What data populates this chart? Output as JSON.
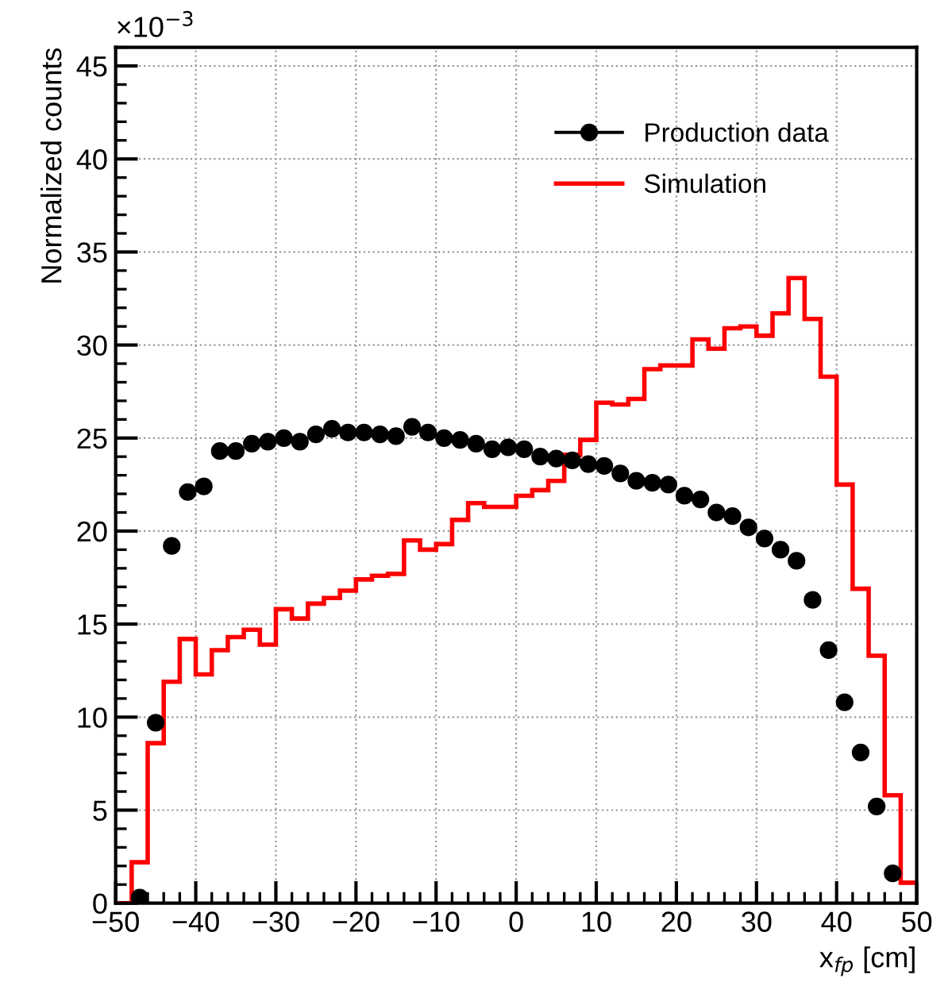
{
  "chart_data": {
    "type": "scatter",
    "xlabel": "x$_{fp}$ [cm]",
    "ylabel": "Normalized counts",
    "annotations": [
      "×10$^{−3}$"
    ],
    "xlim": [
      -50,
      50
    ],
    "xticks": [
      -50,
      -40,
      -30,
      -20,
      -10,
      0,
      10,
      20,
      30,
      40,
      50
    ],
    "ylim": [
      0,
      46
    ],
    "yticks": [
      0,
      5,
      10,
      15,
      20,
      25,
      30,
      35,
      40,
      45
    ],
    "grid": true,
    "legend": "top right",
    "marker": "circle",
    "series": [
      {
        "name": "Production data",
        "color": "#000000",
        "x": [
          -47,
          -45,
          -43,
          -41,
          -39,
          -37,
          -35,
          -33,
          -31,
          -29,
          -27,
          -25,
          -23,
          -21,
          -19,
          -17,
          -15,
          -13,
          -11,
          -9,
          -7,
          -5,
          -3,
          -1,
          1,
          3,
          5,
          7,
          9,
          11,
          13,
          15,
          17,
          19,
          21,
          23,
          25,
          27,
          29,
          31,
          33,
          35,
          37,
          39,
          41,
          43,
          45,
          47
        ],
        "values": [
          0.3,
          9.7,
          19.2,
          22.1,
          22.4,
          24.3,
          24.3,
          24.7,
          24.8,
          25.0,
          24.8,
          25.2,
          25.5,
          25.3,
          25.3,
          25.2,
          25.1,
          25.6,
          25.3,
          25.0,
          24.9,
          24.7,
          24.4,
          24.5,
          24.4,
          24.0,
          23.9,
          23.8,
          23.6,
          23.5,
          23.1,
          22.7,
          22.6,
          22.5,
          21.9,
          21.7,
          21.0,
          20.8,
          20.2,
          19.6,
          19.0,
          18.4,
          16.3,
          13.6,
          10.8,
          8.1,
          5.2,
          1.6
        ]
      },
      {
        "name": "Simulation",
        "type": "histogram",
        "color": "#ff0000",
        "bins": [
          -50,
          -48,
          -46,
          -44,
          -42,
          -40,
          -38,
          -36,
          -34,
          -32,
          -30,
          -28,
          -26,
          -24,
          -22,
          -20,
          -18,
          -16,
          -14,
          -12,
          -10,
          -8,
          -6,
          -4,
          -2,
          0,
          2,
          4,
          6,
          8,
          10,
          12,
          14,
          16,
          18,
          20,
          22,
          24,
          26,
          28,
          30,
          32,
          34,
          36,
          38,
          40,
          42,
          44,
          46,
          48,
          50
        ],
        "values": [
          0,
          2.2,
          8.6,
          11.9,
          14.2,
          12.3,
          13.6,
          14.3,
          14.7,
          13.9,
          15.8,
          15.3,
          16.1,
          16.4,
          16.8,
          17.4,
          17.6,
          17.7,
          19.5,
          19.0,
          19.3,
          20.6,
          21.5,
          21.3,
          21.3,
          21.9,
          22.2,
          22.7,
          24.1,
          24.9,
          26.9,
          26.8,
          27.1,
          28.7,
          28.9,
          28.9,
          30.3,
          29.8,
          30.9,
          31.0,
          30.5,
          31.7,
          33.6,
          31.4,
          28.3,
          22.5,
          16.9,
          13.3,
          5.8,
          1.1
        ]
      }
    ]
  }
}
